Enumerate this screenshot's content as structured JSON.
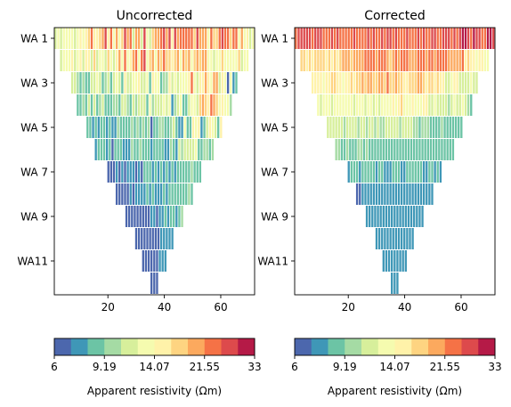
{
  "chart_data": [
    {
      "type": "heatmap",
      "title": "Uncorrected",
      "xlabel": "",
      "ylabel": "",
      "xlim": [
        1,
        72
      ],
      "x_ticks": [
        "20",
        "40",
        "60"
      ],
      "y_ticks": [
        "WA 1",
        "WA 3",
        "WA 5",
        "WA 7",
        "WA 9",
        "WA11"
      ],
      "levels": 12,
      "colorbar": {
        "label": "Apparent resistivity (Ωm)",
        "scale": "log",
        "min": 6,
        "max": 33,
        "tick_labels": [
          "6",
          "9.19",
          "14.07",
          "21.55",
          "33"
        ],
        "colormap": "Spectral_r"
      },
      "rows": [
        [
          11,
          13,
          12,
          13,
          14,
          13,
          13,
          12,
          14,
          16,
          14,
          15,
          17,
          22,
          16,
          15,
          17,
          20,
          25,
          16,
          22,
          14,
          21,
          14,
          17,
          28,
          19,
          23,
          12,
          20,
          19,
          12,
          25,
          13,
          12,
          18,
          20,
          21,
          23,
          28,
          20,
          26,
          16,
          25,
          21,
          22,
          24,
          24,
          22,
          22,
          18,
          25,
          20,
          20,
          19,
          14,
          23,
          18,
          18,
          23,
          28,
          22,
          23,
          18,
          23,
          22,
          13,
          21,
          14,
          15,
          12,
          14
        ],
        [
          12,
          13,
          14,
          14,
          15,
          12,
          14,
          15,
          12,
          16,
          16,
          12,
          17,
          12,
          14,
          13,
          12,
          17,
          13,
          12,
          16,
          21,
          13,
          24,
          13,
          16,
          21,
          24,
          14,
          22,
          25,
          14,
          18,
          21,
          13,
          20,
          17,
          23,
          17,
          18,
          15,
          18,
          21,
          14,
          20,
          17,
          21,
          14,
          18,
          21,
          18,
          21,
          20,
          13,
          14,
          12,
          14,
          13,
          17,
          13,
          13,
          13,
          14,
          14,
          17,
          12,
          13,
          13
        ],
        [
          11,
          11,
          10,
          9,
          10,
          8,
          9,
          11,
          11,
          13,
          11,
          9,
          10,
          12,
          9,
          12,
          14,
          12,
          9,
          16,
          11,
          12,
          13,
          13,
          15,
          12,
          11,
          14,
          9,
          15,
          14,
          14,
          9,
          10,
          10,
          15,
          12,
          13,
          12,
          13,
          14,
          14,
          16,
          22,
          14,
          12,
          15,
          15,
          21,
          15,
          14,
          19,
          19,
          12,
          16,
          14,
          6,
          13,
          7,
          8
        ],
        [
          9,
          9,
          10,
          9,
          11,
          9,
          11,
          8,
          10,
          12,
          9,
          9,
          9,
          10,
          10,
          9,
          11,
          11,
          10,
          8,
          11,
          10,
          12,
          11,
          12,
          9,
          13,
          10,
          12,
          12,
          11,
          13,
          11,
          14,
          7,
          10,
          11,
          14,
          8,
          9,
          11,
          13,
          14,
          12,
          17,
          21,
          18,
          15,
          22,
          19,
          18,
          14,
          15,
          13,
          14,
          10
        ],
        [
          9,
          9,
          7,
          9,
          7,
          9,
          8,
          7,
          9,
          7,
          7,
          10,
          8,
          8,
          9,
          8,
          10,
          9,
          10,
          8,
          10,
          8,
          10,
          6,
          9,
          9,
          10,
          10,
          9,
          8,
          10,
          12,
          9,
          7,
          7,
          13,
          8,
          8,
          15,
          13,
          16,
          7,
          9,
          11,
          15,
          13,
          12,
          8,
          15
        ],
        [
          7,
          8,
          8,
          8,
          7,
          8,
          6,
          8,
          8,
          8,
          7,
          7,
          7,
          10,
          9,
          9,
          10,
          9,
          8,
          8,
          7,
          8,
          8,
          9,
          8,
          7,
          7,
          10,
          9,
          7,
          12,
          10,
          11,
          12,
          11,
          11,
          13,
          9,
          9,
          10,
          10,
          9,
          10
        ],
        [
          6,
          6,
          6,
          7,
          6,
          7,
          6,
          7,
          7,
          7,
          6,
          7,
          6,
          8,
          8,
          8,
          7,
          8,
          7,
          8,
          7,
          8,
          7,
          8,
          7,
          8,
          8,
          9,
          8,
          8,
          10,
          9,
          8,
          9
        ],
        [
          6,
          6,
          6,
          6,
          6,
          7,
          6,
          7,
          7,
          7,
          7,
          8,
          7,
          8,
          7,
          7,
          7,
          8,
          7,
          8,
          9,
          9,
          8,
          8,
          9,
          8,
          10,
          8
        ],
        [
          6,
          6,
          6,
          6,
          6,
          6,
          6,
          6,
          6,
          7,
          7,
          6,
          7,
          7,
          8,
          7,
          8,
          8,
          7,
          9,
          10
        ],
        [
          6,
          6,
          6,
          6,
          6,
          6,
          6,
          6,
          6,
          7,
          7,
          7,
          7,
          7
        ],
        [
          6,
          6,
          6,
          6,
          6,
          6,
          7,
          7,
          7
        ],
        [
          6,
          6,
          6
        ]
      ]
    },
    {
      "type": "heatmap",
      "title": "Corrected",
      "xlabel": "",
      "ylabel": "",
      "xlim": [
        1,
        72
      ],
      "x_ticks": [
        "20",
        "40",
        "60"
      ],
      "y_ticks": [
        "WA 1",
        "WA 3",
        "WA 5",
        "WA 7",
        "WA 9",
        "WA11"
      ],
      "levels": 12,
      "colorbar": {
        "label": "Apparent resistivity (Ωm)",
        "scale": "log",
        "min": 6,
        "max": 33,
        "tick_labels": [
          "6",
          "9.19",
          "14.07",
          "21.55",
          "33"
        ],
        "colormap": "Spectral_r"
      },
      "rows": [
        [
          24,
          26,
          27,
          25,
          27,
          26,
          23,
          25,
          25,
          25,
          24,
          23,
          24,
          27,
          23,
          25,
          24,
          24,
          22,
          23,
          24,
          27,
          24,
          24,
          23,
          22,
          25,
          24,
          27,
          22,
          24,
          26,
          24,
          25,
          26,
          23,
          25,
          23,
          24,
          24,
          25,
          23,
          22,
          24,
          25,
          22,
          26,
          24,
          23,
          25,
          28,
          24,
          23,
          25,
          25,
          26,
          23,
          27,
          24,
          25,
          30,
          29,
          26,
          24,
          29,
          28,
          27,
          24,
          24,
          29,
          33,
          25
        ],
        [
          18,
          18,
          16,
          17,
          16,
          17,
          18,
          17,
          18,
          16,
          17,
          16,
          17,
          16,
          18,
          19,
          20,
          20,
          17,
          20,
          21,
          21,
          21,
          22,
          23,
          24,
          22,
          21,
          22,
          23,
          24,
          21,
          18,
          19,
          22,
          21,
          22,
          23,
          22,
          21,
          20,
          21,
          24,
          22,
          22,
          21,
          22,
          24,
          21,
          23,
          22,
          24,
          23,
          21,
          19,
          20,
          19,
          20,
          22,
          16,
          17,
          16,
          15,
          14,
          15,
          16,
          14,
          14
        ],
        [
          16,
          15,
          15,
          15,
          14,
          16,
          16,
          17,
          17,
          15,
          16,
          14,
          15,
          16,
          17,
          15,
          17,
          18,
          20,
          18,
          19,
          20,
          17,
          18,
          21,
          19,
          18,
          22,
          18,
          17,
          19,
          18,
          17,
          16,
          15,
          17,
          17,
          18,
          20,
          19,
          17,
          16,
          18,
          17,
          16,
          17,
          15,
          15,
          12,
          12,
          14,
          16,
          15,
          12,
          12,
          11,
          11,
          13,
          12,
          11
        ],
        [
          13,
          12,
          13,
          13,
          14,
          12,
          14,
          13,
          13,
          14,
          13,
          13,
          14,
          12,
          14,
          13,
          14,
          12,
          13,
          13,
          12,
          14,
          12,
          13,
          14,
          13,
          14,
          15,
          14,
          16,
          17,
          13,
          13,
          14,
          15,
          14,
          14,
          14,
          15,
          15,
          12,
          11,
          13,
          11,
          12,
          12,
          11,
          10,
          12,
          13,
          12,
          11,
          13,
          11,
          10,
          9
        ],
        [
          12,
          11,
          11,
          12,
          11,
          11,
          10,
          11,
          11,
          11,
          12,
          10,
          11,
          11,
          10,
          12,
          11,
          10,
          11,
          10,
          10,
          12,
          11,
          11,
          12,
          11,
          10,
          11,
          12,
          12,
          11,
          10,
          10,
          9,
          10,
          10,
          10,
          9,
          9,
          9,
          9,
          10,
          9,
          9,
          9,
          9,
          8,
          9,
          9
        ],
        [
          10,
          10,
          9,
          9,
          10,
          9,
          9,
          9,
          10,
          10,
          9,
          10,
          9,
          9,
          9,
          9,
          9,
          8,
          9,
          9,
          9,
          9,
          8,
          8,
          9,
          9,
          8,
          8,
          9,
          9,
          9,
          8,
          8,
          8,
          9,
          8,
          8,
          8,
          8,
          8,
          8,
          8,
          8
        ],
        [
          7,
          8,
          8,
          8,
          7,
          8,
          8,
          8,
          8,
          8,
          7,
          8,
          8,
          7,
          7,
          7,
          8,
          8,
          8,
          7,
          7,
          8,
          8,
          8,
          8,
          8,
          8,
          7,
          7,
          8,
          8,
          7,
          8,
          7
        ],
        [
          6,
          6,
          7,
          7,
          7,
          7,
          7,
          7,
          7,
          7,
          7,
          7,
          7,
          7,
          7,
          7,
          7,
          7,
          7,
          7,
          7,
          7,
          7,
          7,
          7,
          7,
          7,
          7
        ],
        [
          7,
          7,
          7,
          7,
          7,
          7,
          7,
          7,
          7,
          7,
          7,
          7,
          7,
          7,
          7,
          7,
          7,
          7,
          7,
          7,
          7
        ],
        [
          7,
          7,
          7,
          7,
          7,
          7,
          7,
          7,
          7,
          7,
          7,
          7,
          7,
          7
        ],
        [
          7,
          7,
          7,
          7,
          7,
          7,
          7,
          7,
          7
        ],
        [
          7,
          7,
          7
        ]
      ]
    }
  ]
}
